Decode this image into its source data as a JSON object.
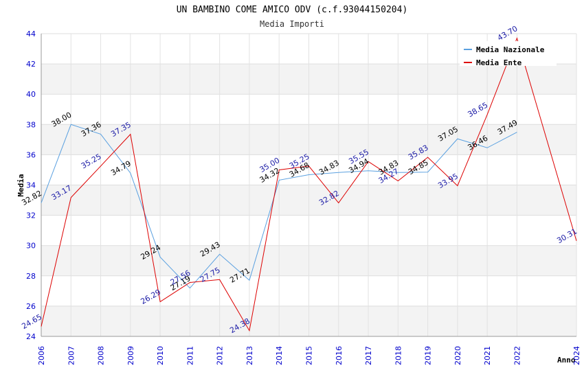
{
  "chart_data": {
    "type": "line",
    "title": "UN BAMBINO COME AMICO ODV (c.f.93044150204)",
    "subtitle": "Media Importi",
    "ylabel": "Media",
    "xlabel": "Anno",
    "ylim": [
      24,
      44
    ],
    "yticks": [
      "24",
      "26",
      "28",
      "30",
      "32",
      "34",
      "36",
      "38",
      "40",
      "42",
      "44"
    ],
    "x": [
      "2006",
      "2007",
      "2008",
      "2009",
      "2010",
      "2011",
      "2012",
      "2013",
      "2014",
      "2015",
      "2016",
      "2017",
      "2018",
      "2019",
      "2020",
      "2021",
      "2022",
      "2024"
    ],
    "legend_position": "top-right",
    "series": [
      {
        "name": "Media Nazionale",
        "color": "#5aa0e0",
        "points": [
          {
            "x": "2006",
            "y": 32.82,
            "label": "32.82"
          },
          {
            "x": "2007",
            "y": 38.0,
            "label": "38.00"
          },
          {
            "x": "2008",
            "y": 37.36,
            "label": "37.36"
          },
          {
            "x": "2009",
            "y": 34.79,
            "label": "34.79"
          },
          {
            "x": "2010",
            "y": 29.24,
            "label": "29.24"
          },
          {
            "x": "2011",
            "y": 27.19,
            "label": "27.19"
          },
          {
            "x": "2012",
            "y": 29.43,
            "label": "29.43"
          },
          {
            "x": "2013",
            "y": 27.71,
            "label": "27.71"
          },
          {
            "x": "2014",
            "y": 34.32,
            "label": "34.32"
          },
          {
            "x": "2015",
            "y": 34.68,
            "label": "34.68"
          },
          {
            "x": "2016",
            "y": 34.83,
            "label": "34.83"
          },
          {
            "x": "2017",
            "y": 34.94,
            "label": "34.94"
          },
          {
            "x": "2018",
            "y": 34.83,
            "label": "34.83"
          },
          {
            "x": "2019",
            "y": 34.85,
            "label": "34.85"
          },
          {
            "x": "2020",
            "y": 37.05,
            "label": "37.05"
          },
          {
            "x": "2021",
            "y": 36.46,
            "label": "36.46"
          },
          {
            "x": "2022",
            "y": 37.49,
            "label": "37.49"
          }
        ]
      },
      {
        "name": "Media Ente",
        "color": "#dd0000",
        "points": [
          {
            "x": "2006",
            "y": 24.65,
            "label": "24.65"
          },
          {
            "x": "2007",
            "y": 33.17,
            "label": "33.17"
          },
          {
            "x": "2008",
            "y": 35.25,
            "label": "35.25"
          },
          {
            "x": "2009",
            "y": 37.35,
            "label": "37.35"
          },
          {
            "x": "2010",
            "y": 26.29,
            "label": "26.29"
          },
          {
            "x": "2011",
            "y": 27.56,
            "label": "27.56"
          },
          {
            "x": "2012",
            "y": 27.75,
            "label": "27.75"
          },
          {
            "x": "2013",
            "y": 24.38,
            "label": "24.38"
          },
          {
            "x": "2014",
            "y": 35.0,
            "label": "35.00"
          },
          {
            "x": "2015",
            "y": 35.25,
            "label": "35.25"
          },
          {
            "x": "2016",
            "y": 32.82,
            "label": "32.82"
          },
          {
            "x": "2017",
            "y": 35.55,
            "label": "35.55"
          },
          {
            "x": "2018",
            "y": 34.27,
            "label": "34.27"
          },
          {
            "x": "2019",
            "y": 35.83,
            "label": "35.83"
          },
          {
            "x": "2020",
            "y": 33.95,
            "label": "33.95"
          },
          {
            "x": "2021",
            "y": 38.65,
            "label": "38.65"
          },
          {
            "x": "2022",
            "y": 43.7,
            "label": "43.70"
          },
          {
            "x": "2024",
            "y": 30.31,
            "label": "30.31"
          }
        ]
      }
    ]
  }
}
